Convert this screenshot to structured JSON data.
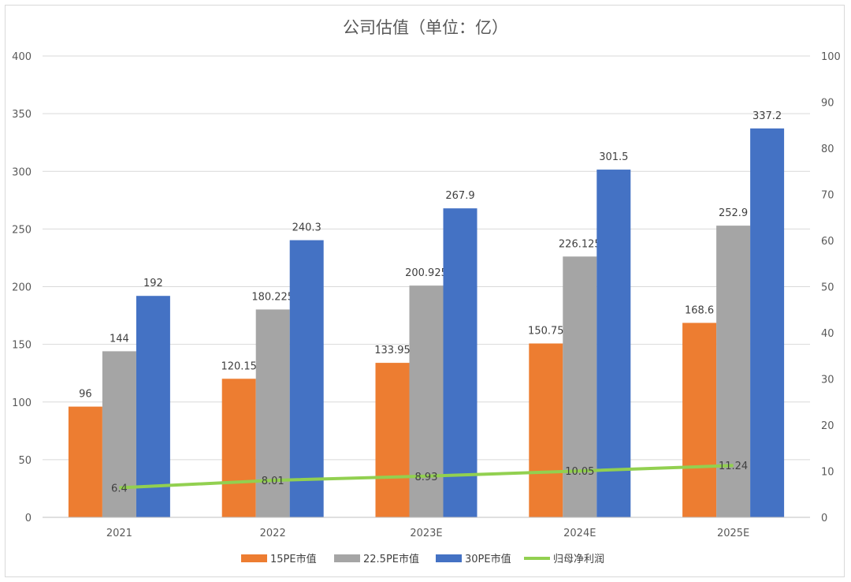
{
  "chart_data": {
    "type": "bar",
    "title": "公司估值（单位：亿）",
    "categories": [
      "2021",
      "2022",
      "2023E",
      "2024E",
      "2025E"
    ],
    "ylim": [
      0,
      400
    ],
    "y_ticks": [
      0,
      50,
      100,
      150,
      200,
      250,
      300,
      350,
      400
    ],
    "y2lim": [
      0,
      100
    ],
    "y2_ticks": [
      0,
      10,
      20,
      30,
      40,
      50,
      60,
      70,
      80,
      90,
      100
    ],
    "grid": true,
    "legend": "bottom",
    "series": [
      {
        "name": "15PE市值",
        "kind": "bar",
        "axis": "left",
        "color": "#ed7d31",
        "values": [
          96,
          120.15,
          133.95,
          150.75,
          168.6
        ],
        "labels": [
          "96",
          "120.15",
          "133.95",
          "150.75",
          "168.6"
        ]
      },
      {
        "name": "22.5PE市值",
        "kind": "bar",
        "axis": "left",
        "color": "#a5a5a5",
        "values": [
          144,
          180.225,
          200.925,
          226.125,
          252.9
        ],
        "labels": [
          "144",
          "180.225",
          "200.925",
          "226.125",
          "252.9"
        ]
      },
      {
        "name": "30PE市值",
        "kind": "bar",
        "axis": "left",
        "color": "#4472c4",
        "values": [
          192,
          240.3,
          267.9,
          301.5,
          337.2
        ],
        "labels": [
          "192",
          "240.3",
          "267.9",
          "301.5",
          "337.2"
        ]
      },
      {
        "name": "归母净利润",
        "kind": "line",
        "axis": "right",
        "color": "#92d050",
        "values": [
          6.4,
          8.01,
          8.93,
          10.05,
          11.24
        ],
        "labels": [
          "6.4",
          "8.01",
          "8.93",
          "10.05",
          "11.24"
        ]
      }
    ]
  }
}
